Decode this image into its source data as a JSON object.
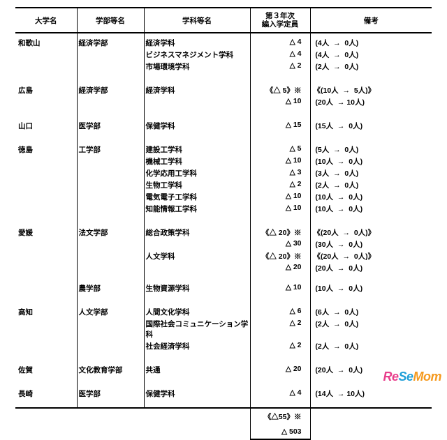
{
  "headers": {
    "university": "大学名",
    "faculty": "学部等名",
    "department": "学科等名",
    "capacity_l1": "第３年次",
    "capacity_l2": "編入学定員",
    "notes": "備考"
  },
  "rows": [
    {
      "type": "data",
      "group_top": true,
      "uni": "和歌山",
      "fac": "経済学部",
      "dept": "経済学科",
      "cap": "△ 4",
      "note": " (4人  →  0人)"
    },
    {
      "type": "data",
      "dept": "ビジネスマネジメント学科",
      "cap": "△ 4",
      "note": " (4人  →  0人)"
    },
    {
      "type": "data",
      "dept": "市場環境学科",
      "cap": "△ 2",
      "note": " (2人  →  0人)"
    },
    {
      "type": "spacer"
    },
    {
      "type": "data",
      "group_top": true,
      "uni": "広島",
      "fac": "経済学部",
      "dept": "経済学科",
      "cap": "《△ 5》※",
      "note": "《(10人  →  5人)》"
    },
    {
      "type": "data",
      "cap": "△ 10",
      "note": " (20人  → 10人)"
    },
    {
      "type": "spacer"
    },
    {
      "type": "data",
      "group_top": true,
      "uni": "山口",
      "fac": "医学部",
      "dept": "保健学科",
      "cap": "△ 15",
      "note": " (15人  →  0人)"
    },
    {
      "type": "spacer"
    },
    {
      "type": "data",
      "group_top": true,
      "uni": "徳島",
      "fac": "工学部",
      "dept": "建設工学科",
      "cap": "△ 5",
      "note": " (5人  →  0人)"
    },
    {
      "type": "data",
      "dept": "機械工学科",
      "cap": "△ 10",
      "note": " (10人  →  0人)"
    },
    {
      "type": "data",
      "dept": "化学応用工学科",
      "cap": "△ 3",
      "note": " (3人  →  0人)"
    },
    {
      "type": "data",
      "dept": "生物工学科",
      "cap": "△ 2",
      "note": " (2人  →  0人)"
    },
    {
      "type": "data",
      "dept": "電気電子工学科",
      "cap": "△ 10",
      "note": " (10人  →  0人)"
    },
    {
      "type": "data",
      "dept": "知能情報工学科",
      "cap": "△ 10",
      "note": " (10人  →  0人)"
    },
    {
      "type": "spacer"
    },
    {
      "type": "data",
      "group_top": true,
      "uni": "愛媛",
      "fac": "法文学部",
      "dept": "総合政策学科",
      "cap": "《△ 20》※",
      "note": "《(20人  →  0人)》"
    },
    {
      "type": "data",
      "cap": "△ 30",
      "note": " (30人  →  0人)"
    },
    {
      "type": "data",
      "dept": "人文学科",
      "cap": "《△ 20》※",
      "note": "《(20人  →  0人)》"
    },
    {
      "type": "data",
      "cap": "△ 20",
      "note": " (20人  →  0人)"
    },
    {
      "type": "spacer"
    },
    {
      "type": "data",
      "fac": "農学部",
      "dept": "生物資源学科",
      "cap": "△ 10",
      "note": " (10人  →  0人)"
    },
    {
      "type": "spacer"
    },
    {
      "type": "data",
      "group_top": true,
      "uni": "高知",
      "fac": "人文学部",
      "dept": "人間文化学科",
      "cap": "△ 6",
      "note": " (6人  →  0人)"
    },
    {
      "type": "data",
      "dept": "国際社会コミュニケーション学科",
      "cap": "△ 2",
      "note": " (2人  →  0人)"
    },
    {
      "type": "data",
      "dept": "社会経済学科",
      "cap": "△ 2",
      "note": " (2人  →  0人)"
    },
    {
      "type": "spacer"
    },
    {
      "type": "data",
      "group_top": true,
      "uni": "佐賀",
      "fac": "文化教育学部",
      "dept": "共通",
      "cap": "△ 20",
      "note": " (20人  →  0人)"
    },
    {
      "type": "spacer"
    },
    {
      "type": "data",
      "group_top": true,
      "uni": "長崎",
      "fac": "医学部",
      "dept": "保健学科",
      "cap": "△ 4",
      "note": " (14人  → 10人)"
    }
  ],
  "totals": {
    "line1": "《△55》※",
    "line2": "△ 503"
  },
  "logo": {
    "part1": "Re",
    "part2": "Se",
    "part3": "Mom"
  }
}
